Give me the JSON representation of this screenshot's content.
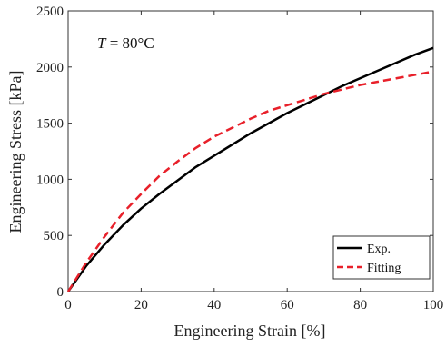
{
  "chart_data": {
    "type": "line",
    "xlabel": "Engineering Strain [%]",
    "ylabel": "Engineering Stress [kPa]",
    "xlim": [
      0,
      100
    ],
    "ylim": [
      0,
      2500
    ],
    "xticks": [
      0,
      20,
      40,
      60,
      80,
      100
    ],
    "yticks": [
      0,
      500,
      1000,
      1500,
      2000,
      2500
    ],
    "grid": false,
    "legend_position": "bottom-right",
    "annotation": {
      "symbol": "T",
      "rest": " = 80°C"
    },
    "series": [
      {
        "name": "Exp.",
        "color": "#000000",
        "style": "solid",
        "x": [
          0,
          5,
          10,
          15,
          20,
          25,
          30,
          35,
          40,
          45,
          50,
          55,
          60,
          65,
          70,
          75,
          80,
          85,
          90,
          95,
          100
        ],
        "y": [
          0,
          230,
          420,
          590,
          740,
          870,
          990,
          1110,
          1210,
          1310,
          1410,
          1500,
          1590,
          1670,
          1750,
          1830,
          1900,
          1970,
          2040,
          2110,
          2170
        ]
      },
      {
        "name": "Fitting",
        "color": "#e8202a",
        "style": "dashed",
        "x": [
          0,
          5,
          10,
          15,
          20,
          25,
          30,
          35,
          40,
          45,
          50,
          55,
          60,
          65,
          70,
          75,
          80,
          85,
          90,
          95,
          100
        ],
        "y": [
          0,
          260,
          490,
          700,
          870,
          1030,
          1160,
          1280,
          1380,
          1460,
          1540,
          1610,
          1660,
          1710,
          1760,
          1800,
          1840,
          1870,
          1900,
          1930,
          1960
        ]
      }
    ]
  }
}
